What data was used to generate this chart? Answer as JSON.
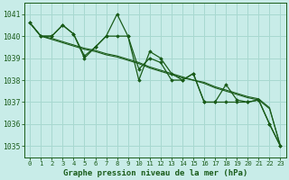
{
  "background_color": "#c8ece8",
  "grid_color": "#a8d8d0",
  "line_color": "#1a5c1a",
  "xlabel": "Graphe pression niveau de la mer (hPa)",
  "xlim": [
    -0.5,
    23.5
  ],
  "ylim": [
    1034.5,
    1041.5
  ],
  "yticks": [
    1035,
    1036,
    1037,
    1038,
    1039,
    1040,
    1041
  ],
  "xticks": [
    0,
    1,
    2,
    3,
    4,
    5,
    6,
    7,
    8,
    9,
    10,
    11,
    12,
    13,
    14,
    15,
    16,
    17,
    18,
    19,
    20,
    21,
    22,
    23
  ],
  "series_jagged1": [
    1040.6,
    1040.0,
    1040.0,
    1040.5,
    1040.1,
    1039.0,
    1039.5,
    1040.0,
    1041.0,
    1040.0,
    1038.0,
    1039.3,
    1039.0,
    1038.3,
    1038.0,
    1038.3,
    1037.0,
    1037.0,
    1037.8,
    1037.1,
    1037.0,
    1037.1,
    1036.0,
    1035.0
  ],
  "series_smooth1": [
    1040.6,
    1040.0,
    1039.85,
    1039.7,
    1039.55,
    1039.4,
    1039.3,
    1039.15,
    1039.05,
    1038.9,
    1038.75,
    1038.55,
    1038.4,
    1038.25,
    1038.1,
    1038.0,
    1037.85,
    1037.65,
    1037.5,
    1037.35,
    1037.2,
    1037.1,
    1036.7,
    1035.0
  ],
  "series_smooth2": [
    1040.6,
    1040.0,
    1039.9,
    1039.75,
    1039.6,
    1039.45,
    1039.35,
    1039.2,
    1039.1,
    1038.95,
    1038.8,
    1038.6,
    1038.45,
    1038.3,
    1038.15,
    1038.0,
    1037.9,
    1037.7,
    1037.55,
    1037.4,
    1037.25,
    1037.15,
    1036.75,
    1035.0
  ],
  "series_jagged2": [
    1040.6,
    1040.0,
    1040.0,
    1040.5,
    1040.1,
    1039.1,
    1039.5,
    1040.0,
    1040.0,
    1040.0,
    1038.5,
    1039.0,
    1038.8,
    1038.0,
    1038.0,
    1038.3,
    1037.0,
    1037.0,
    1037.0,
    1037.0,
    1037.0,
    1037.1,
    1036.0,
    1035.0
  ]
}
